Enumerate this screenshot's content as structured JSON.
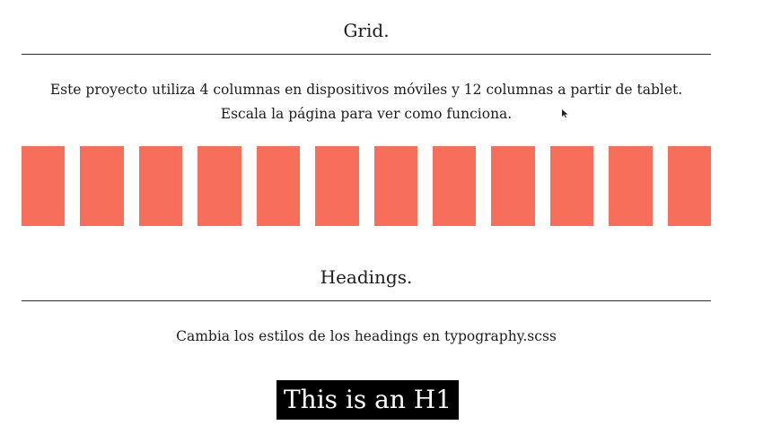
{
  "grid_section": {
    "title": "Grid.",
    "description_line1": "Este proyecto utiliza 4 columnas en dispositivos móviles y 12 columnas a partir de tablet.",
    "description_line2": "Escala la página para ver como funciona.",
    "column_count": 12,
    "column_color": "#f76f5b"
  },
  "headings_section": {
    "title": "Headings.",
    "description": "Cambia los estilos de los headings en typography.scss",
    "h1_sample": "This is an H1"
  },
  "cursor": {
    "icon": "mouse-pointer-icon"
  }
}
